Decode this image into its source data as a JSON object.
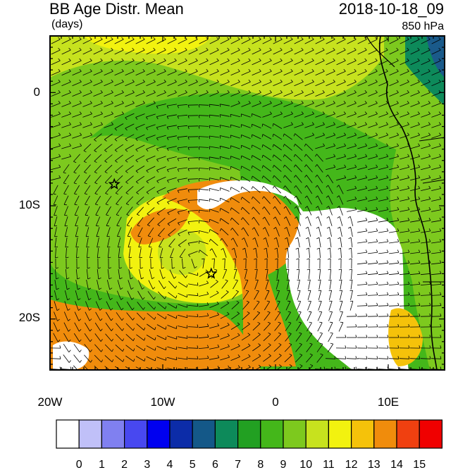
{
  "header": {
    "title": "BB Age Distr. Mean",
    "units": "(days)",
    "datetime": "2018-10-18_09",
    "level": "850 hPa"
  },
  "axes": {
    "lat_labels": [
      "0",
      "10S",
      "20S"
    ],
    "lon_labels": [
      "20W",
      "10W",
      "0",
      "10E"
    ]
  },
  "map": {
    "lon_range": [
      -20,
      15
    ],
    "lat_range": [
      -24.5,
      5
    ],
    "markers": [
      {
        "name": "star-marker-north",
        "lon": -14.3,
        "lat": -8.1
      },
      {
        "name": "star-marker-south",
        "lon": -5.7,
        "lat": -16.0
      }
    ],
    "fields": [
      {
        "name": "band-8-9",
        "color": "#44b71a"
      },
      {
        "name": "band-9-10",
        "color": "#7dc91e"
      },
      {
        "name": "band-10-11",
        "color": "#c7e21e"
      },
      {
        "name": "band-11-12",
        "color": "#f2f20f"
      },
      {
        "name": "band-13-14",
        "color": "#f08c0c"
      },
      {
        "name": "band-0-1",
        "color": "#ffffff"
      },
      {
        "name": "band-6-7",
        "color": "#0d8a5a"
      },
      {
        "name": "band-5-6",
        "color": "#1a5a8a"
      }
    ]
  },
  "colorbar": {
    "labels": [
      "0",
      "1",
      "2",
      "3",
      "4",
      "5",
      "6",
      "7",
      "8",
      "9",
      "10",
      "11",
      "12",
      "13",
      "14",
      "15"
    ],
    "colors": [
      "#ffffff",
      "#c0c0f8",
      "#8080f0",
      "#4848f0",
      "#0000f0",
      "#0c2ca8",
      "#145888",
      "#0d8a5a",
      "#22a022",
      "#44b71a",
      "#7dc91e",
      "#c7e21e",
      "#f2f20f",
      "#f5c20a",
      "#f08c0c",
      "#f04010",
      "#f00000"
    ]
  }
}
